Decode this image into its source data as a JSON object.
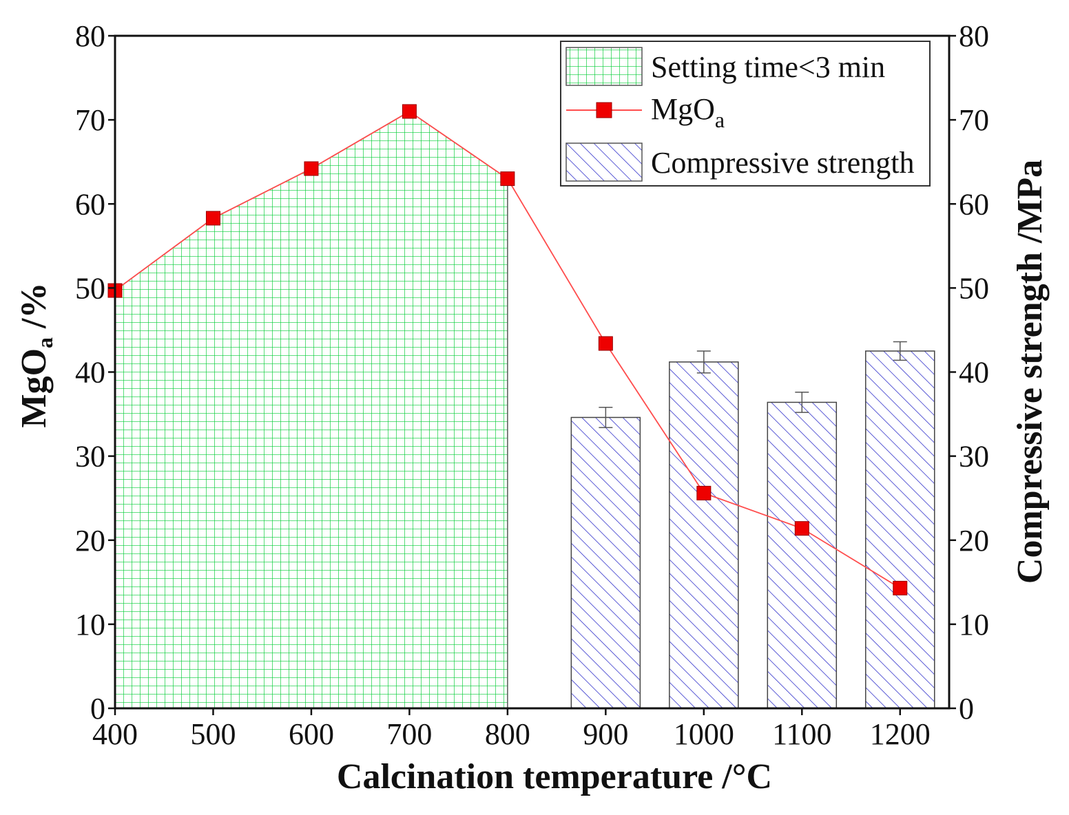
{
  "chart_data": {
    "type": "bar+line",
    "x_ticks": [
      400,
      500,
      600,
      700,
      800,
      900,
      1000,
      1100,
      1200
    ],
    "xlim": [
      400,
      1250
    ],
    "xlabel": "Calcination temperature /°C",
    "ylabel_left": {
      "main": "MgO",
      "sub": "a",
      "suffix": " /%"
    },
    "ylabel_right": "Compressive strength /MPa",
    "ylim_left": [
      0,
      80
    ],
    "ylim_right": [
      0,
      80
    ],
    "y_ticks": [
      0,
      10,
      20,
      30,
      40,
      50,
      60,
      70,
      80
    ],
    "legend_position": "top-right",
    "legend": {
      "setting_time": "Setting time<3 min",
      "mgo_main": "MgO",
      "mgo_sub": "a",
      "strength": "Compressive strength"
    },
    "setting_time_region": {
      "x": [
        400,
        500,
        600,
        700,
        800
      ],
      "y": [
        49.7,
        58.3,
        64.2,
        71.0,
        63.0
      ]
    },
    "series": [
      {
        "key": "mgo",
        "type": "line",
        "axis": "left",
        "x": [
          400,
          500,
          600,
          700,
          800,
          900,
          1000,
          1100,
          1200
        ],
        "y": [
          49.7,
          58.3,
          64.2,
          71.0,
          63.0,
          43.4,
          25.6,
          21.4,
          14.3
        ]
      },
      {
        "key": "strength",
        "type": "bar",
        "axis": "right",
        "x": [
          900,
          1000,
          1100,
          1200
        ],
        "y": [
          34.6,
          41.2,
          36.4,
          42.5
        ],
        "error": [
          1.2,
          1.3,
          1.2,
          1.1
        ]
      }
    ],
    "colors": {
      "grid_fill": "#00cc33",
      "hatch": "#3333cc",
      "line": "#ff4d4d",
      "marker": "#ee0000",
      "error_bar": "#555555"
    }
  }
}
